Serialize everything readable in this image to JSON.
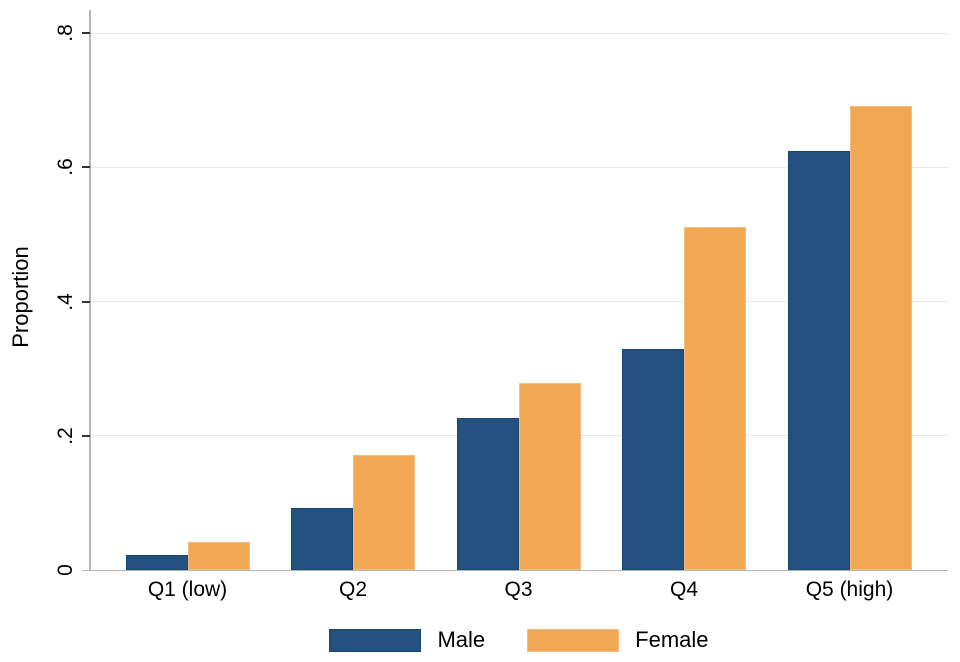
{
  "chart_data": {
    "type": "bar",
    "title": "",
    "xlabel": "",
    "ylabel": "Proportion",
    "categories": [
      "Q1 (low)",
      "Q2",
      "Q3",
      "Q4",
      "Q5 (high)"
    ],
    "series": [
      {
        "name": "Male",
        "color": "#235280",
        "border_color": "#19456E",
        "values": [
          0.023,
          0.093,
          0.227,
          0.33,
          0.625
        ]
      },
      {
        "name": "Female",
        "color": "#F0A855",
        "border_color": "#F3BC82",
        "values": [
          0.042,
          0.171,
          0.279,
          0.511,
          0.691
        ]
      }
    ],
    "yticks": [
      {
        "value": 0.0,
        "label": "0"
      },
      {
        "value": 0.2,
        "label": ".2"
      },
      {
        "value": 0.4,
        "label": ".4"
      },
      {
        "value": 0.6,
        "label": ".6"
      },
      {
        "value": 0.8,
        "label": ".8"
      }
    ],
    "ylim": [
      0,
      0.8
    ],
    "grid": true,
    "legend_position": "bottom",
    "colors": {
      "background": "#FFFFFF",
      "gridline": "#E8E8E8",
      "axis_line": "#B5B5B5",
      "tick_mark": "#333333",
      "text": "#000000"
    }
  }
}
